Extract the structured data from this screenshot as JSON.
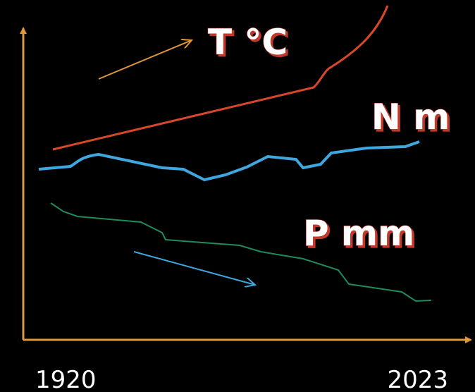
{
  "labels": {
    "temperature": "T °C",
    "wind": "N m",
    "precipitation": "P mm"
  },
  "x_axis": {
    "start": "1920",
    "end": "2023"
  }
}
